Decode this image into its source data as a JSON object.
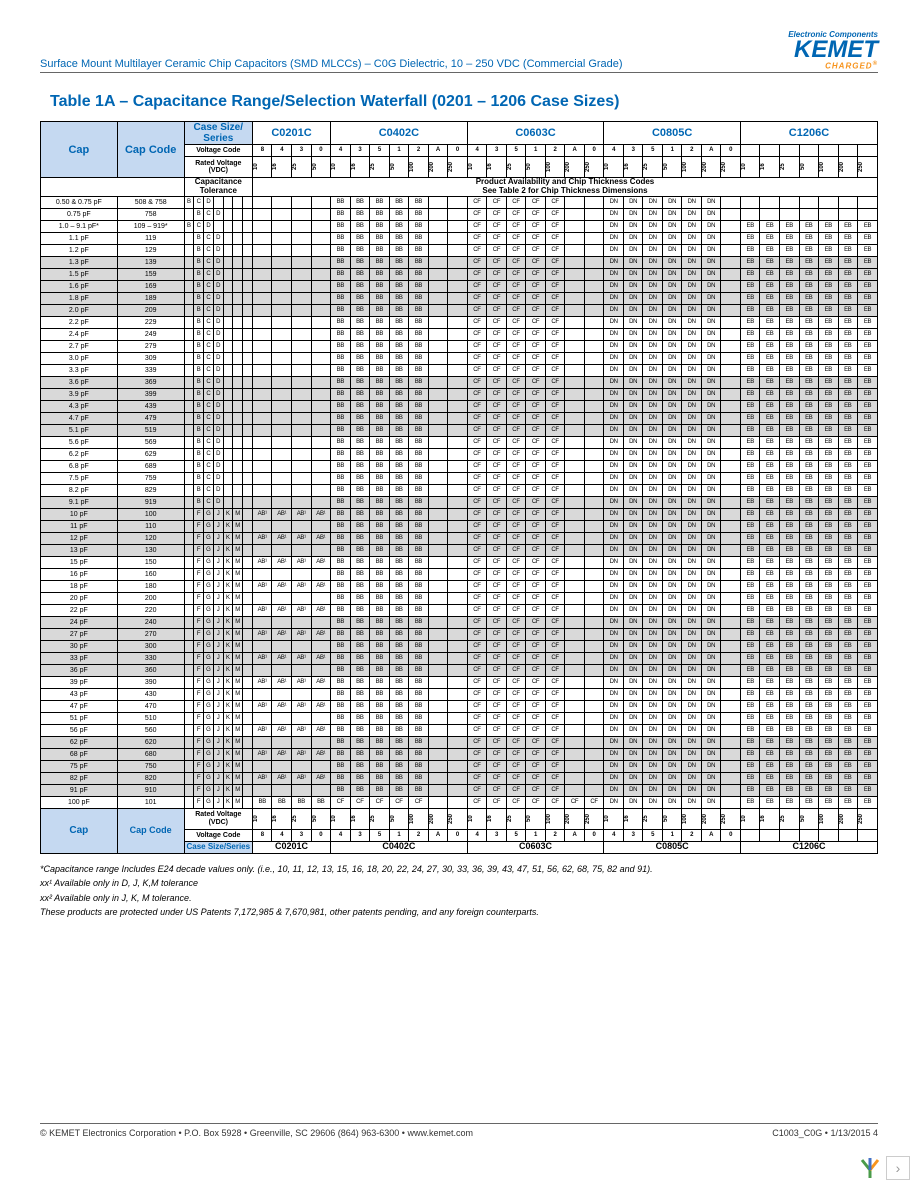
{
  "header": {
    "subtitle": "Surface Mount Multilayer Ceramic Chip Capacitors (SMD MLCCs) – C0G Dielectric, 10 – 250 VDC (Commercial Grade)",
    "logo_top": "Electronic Components",
    "logo_main": "KEMET",
    "logo_sub": "CHARGED"
  },
  "table": {
    "title": "Table 1A – Capacitance Range/Selection Waterfall (0201 – 1206 Case Sizes)",
    "cap_header": "Cap",
    "code_header": "Cap Code",
    "case_series": "Case Size/\nSeries",
    "voltage_code": "Voltage Code",
    "rated_voltage": "Rated Voltage (VDC)",
    "cap_tolerance": "Capacitance\nTolerance",
    "prod_avail": "Product Availability and Chip Thickness Codes\nSee Table 2 for Chip Thickness Dimensions",
    "cases": [
      "C0201C",
      "C0402C",
      "C0603C",
      "C0805C",
      "C1206C"
    ],
    "vcodes_0201": [
      "8",
      "4",
      "3",
      "0",
      "4",
      "3",
      "5",
      "1"
    ],
    "vcodes_0402": [
      "2",
      "A",
      "0",
      "4",
      "3",
      "5",
      "1"
    ],
    "vcodes_0603": [
      "2",
      "A",
      "0",
      "4",
      "3",
      "5",
      "1"
    ],
    "vcodes_0805": [
      "2",
      "A",
      "0",
      "4",
      "3",
      "5",
      "1",
      "2",
      "A"
    ],
    "vcodes_1206": [
      "",
      "",
      "",
      "",
      "",
      "",
      ""
    ],
    "voltages_a": [
      "10",
      "16",
      "25",
      "50"
    ],
    "voltages_b": [
      "10",
      "16",
      "25",
      "50",
      "100",
      "200",
      "250"
    ],
    "rows": [
      {
        "cap": "0.50 & 0.75 pF",
        "code": "508 & 758",
        "tol": [
          "B",
          "C",
          "D",
          "",
          "",
          "",
          ""
        ],
        "shade": false
      },
      {
        "cap": "0.75 pF",
        "code": "758",
        "tol": [
          "",
          "B",
          "C",
          "D",
          "",
          "",
          ""
        ],
        "shade": false
      },
      {
        "cap": "1.0 – 9.1 pF*",
        "code": "109 – 919*",
        "tol": [
          "B",
          "C",
          "D",
          "",
          "",
          "",
          ""
        ],
        "shade": false
      },
      {
        "cap": "1.1 pF",
        "code": "119",
        "tol": [
          "",
          "B",
          "C",
          "D",
          "",
          "",
          ""
        ],
        "shade": false
      },
      {
        "cap": "1.2 pF",
        "code": "129",
        "tol": [
          "",
          "B",
          "C",
          "D",
          "",
          "",
          ""
        ],
        "shade": false
      },
      {
        "cap": "1.3 pF",
        "code": "139",
        "tol": [
          "",
          "B",
          "C",
          "D",
          "",
          "",
          ""
        ],
        "shade": true
      },
      {
        "cap": "1.5 pF",
        "code": "159",
        "tol": [
          "",
          "B",
          "C",
          "D",
          "",
          "",
          ""
        ],
        "shade": true
      },
      {
        "cap": "1.6 pF",
        "code": "169",
        "tol": [
          "",
          "B",
          "C",
          "D",
          "",
          "",
          ""
        ],
        "shade": true
      },
      {
        "cap": "1.8 pF",
        "code": "189",
        "tol": [
          "",
          "B",
          "C",
          "D",
          "",
          "",
          ""
        ],
        "shade": true
      },
      {
        "cap": "2.0 pF",
        "code": "209",
        "tol": [
          "",
          "B",
          "C",
          "D",
          "",
          "",
          ""
        ],
        "shade": true
      },
      {
        "cap": "2.2 pF",
        "code": "229",
        "tol": [
          "",
          "B",
          "C",
          "D",
          "",
          "",
          ""
        ],
        "shade": false
      },
      {
        "cap": "2.4 pF",
        "code": "249",
        "tol": [
          "",
          "B",
          "C",
          "D",
          "",
          "",
          ""
        ],
        "shade": false
      },
      {
        "cap": "2.7 pF",
        "code": "279",
        "tol": [
          "",
          "B",
          "C",
          "D",
          "",
          "",
          ""
        ],
        "shade": false
      },
      {
        "cap": "3.0 pF",
        "code": "309",
        "tol": [
          "",
          "B",
          "C",
          "D",
          "",
          "",
          ""
        ],
        "shade": false
      },
      {
        "cap": "3.3 pF",
        "code": "339",
        "tol": [
          "",
          "B",
          "C",
          "D",
          "",
          "",
          ""
        ],
        "shade": false
      },
      {
        "cap": "3.6 pF",
        "code": "369",
        "tol": [
          "",
          "B",
          "C",
          "D",
          "",
          "",
          ""
        ],
        "shade": true
      },
      {
        "cap": "3.9 pF",
        "code": "399",
        "tol": [
          "",
          "B",
          "C",
          "D",
          "",
          "",
          ""
        ],
        "shade": true
      },
      {
        "cap": "4.3 pF",
        "code": "439",
        "tol": [
          "",
          "B",
          "C",
          "D",
          "",
          "",
          ""
        ],
        "shade": true
      },
      {
        "cap": "4.7 pF",
        "code": "479",
        "tol": [
          "",
          "B",
          "C",
          "D",
          "",
          "",
          ""
        ],
        "shade": true
      },
      {
        "cap": "5.1 pF",
        "code": "519",
        "tol": [
          "",
          "B",
          "C",
          "D",
          "",
          "",
          ""
        ],
        "shade": true
      },
      {
        "cap": "5.6 pF",
        "code": "569",
        "tol": [
          "",
          "B",
          "C",
          "D",
          "",
          "",
          ""
        ],
        "shade": false
      },
      {
        "cap": "6.2 pF",
        "code": "629",
        "tol": [
          "",
          "B",
          "C",
          "D",
          "",
          "",
          ""
        ],
        "shade": false
      },
      {
        "cap": "6.8 pF",
        "code": "689",
        "tol": [
          "",
          "B",
          "C",
          "D",
          "",
          "",
          ""
        ],
        "shade": false
      },
      {
        "cap": "7.5 pF",
        "code": "759",
        "tol": [
          "",
          "B",
          "C",
          "D",
          "",
          "",
          ""
        ],
        "shade": false
      },
      {
        "cap": "8.2 pF",
        "code": "829",
        "tol": [
          "",
          "B",
          "C",
          "D",
          "",
          "",
          ""
        ],
        "shade": false
      },
      {
        "cap": "9.1 pF",
        "code": "919",
        "tol": [
          "",
          "B",
          "C",
          "D",
          "",
          "",
          ""
        ],
        "shade": true
      },
      {
        "cap": "10 pF",
        "code": "100",
        "tol": [
          "",
          "F",
          "G",
          "J",
          "K",
          "M",
          ""
        ],
        "shade": true,
        "ab": true
      },
      {
        "cap": "11 pF",
        "code": "110",
        "tol": [
          "",
          "F",
          "G",
          "J",
          "K",
          "M",
          ""
        ],
        "shade": true
      },
      {
        "cap": "12 pF",
        "code": "120",
        "tol": [
          "",
          "F",
          "G",
          "J",
          "K",
          "M",
          ""
        ],
        "shade": true,
        "ab": true
      },
      {
        "cap": "13 pF",
        "code": "130",
        "tol": [
          "",
          "F",
          "G",
          "J",
          "K",
          "M",
          ""
        ],
        "shade": true
      },
      {
        "cap": "15 pF",
        "code": "150",
        "tol": [
          "",
          "F",
          "G",
          "J",
          "K",
          "M",
          ""
        ],
        "shade": false,
        "ab": true
      },
      {
        "cap": "16 pF",
        "code": "160",
        "tol": [
          "",
          "F",
          "G",
          "J",
          "K",
          "M",
          ""
        ],
        "shade": false
      },
      {
        "cap": "18 pF",
        "code": "180",
        "tol": [
          "",
          "F",
          "G",
          "J",
          "K",
          "M",
          ""
        ],
        "shade": false,
        "ab": true
      },
      {
        "cap": "20 pF",
        "code": "200",
        "tol": [
          "",
          "F",
          "G",
          "J",
          "K",
          "M",
          ""
        ],
        "shade": false
      },
      {
        "cap": "22 pF",
        "code": "220",
        "tol": [
          "",
          "F",
          "G",
          "J",
          "K",
          "M",
          ""
        ],
        "shade": false,
        "ab": true
      },
      {
        "cap": "24 pF",
        "code": "240",
        "tol": [
          "",
          "F",
          "G",
          "J",
          "K",
          "M",
          ""
        ],
        "shade": true
      },
      {
        "cap": "27 pF",
        "code": "270",
        "tol": [
          "",
          "F",
          "G",
          "J",
          "K",
          "M",
          ""
        ],
        "shade": true,
        "ab": true
      },
      {
        "cap": "30 pF",
        "code": "300",
        "tol": [
          "",
          "F",
          "G",
          "J",
          "K",
          "M",
          ""
        ],
        "shade": true
      },
      {
        "cap": "33 pF",
        "code": "330",
        "tol": [
          "",
          "F",
          "G",
          "J",
          "K",
          "M",
          ""
        ],
        "shade": true,
        "ab": true
      },
      {
        "cap": "36 pF",
        "code": "360",
        "tol": [
          "",
          "F",
          "G",
          "J",
          "K",
          "M",
          ""
        ],
        "shade": true
      },
      {
        "cap": "39 pF",
        "code": "390",
        "tol": [
          "",
          "F",
          "G",
          "J",
          "K",
          "M",
          ""
        ],
        "shade": false,
        "ab": true
      },
      {
        "cap": "43 pF",
        "code": "430",
        "tol": [
          "",
          "F",
          "G",
          "J",
          "K",
          "M",
          ""
        ],
        "shade": false
      },
      {
        "cap": "47 pF",
        "code": "470",
        "tol": [
          "",
          "F",
          "G",
          "J",
          "K",
          "M",
          ""
        ],
        "shade": false,
        "ab": true
      },
      {
        "cap": "51 pF",
        "code": "510",
        "tol": [
          "",
          "F",
          "G",
          "J",
          "K",
          "M",
          ""
        ],
        "shade": false
      },
      {
        "cap": "56 pF",
        "code": "560",
        "tol": [
          "",
          "F",
          "G",
          "J",
          "K",
          "M",
          ""
        ],
        "shade": false,
        "ab": true
      },
      {
        "cap": "62 pF",
        "code": "620",
        "tol": [
          "",
          "F",
          "G",
          "J",
          "K",
          "M",
          ""
        ],
        "shade": true
      },
      {
        "cap": "68 pF",
        "code": "680",
        "tol": [
          "",
          "F",
          "G",
          "J",
          "K",
          "M",
          ""
        ],
        "shade": true,
        "ab": true
      },
      {
        "cap": "75 pF",
        "code": "750",
        "tol": [
          "",
          "F",
          "G",
          "J",
          "K",
          "M",
          ""
        ],
        "shade": true
      },
      {
        "cap": "82 pF",
        "code": "820",
        "tol": [
          "",
          "F",
          "G",
          "J",
          "K",
          "M",
          ""
        ],
        "shade": true,
        "ab": true
      },
      {
        "cap": "91 pF",
        "code": "910",
        "tol": [
          "",
          "F",
          "G",
          "J",
          "K",
          "M",
          ""
        ],
        "shade": true
      },
      {
        "cap": "100 pF",
        "code": "101",
        "tol": [
          "",
          "F",
          "G",
          "J",
          "K",
          "M",
          ""
        ],
        "shade": false,
        "ab": true,
        "last": true
      }
    ]
  },
  "notes": {
    "n1": "*Capacitance range Includes E24 decade values only. (i.e., 10, 11, 12, 13, 15, 16, 18, 20, 22, 24, 27, 30, 33, 36, 39, 43, 47, 51, 56, 62, 68, 75, 82 and 91).",
    "n2": "xx¹ Available only in D, J, K,M tolerance",
    "n3": "xx² Available only in J, K, M tolerance.",
    "n4": "These products are protected under US Patents 7,172,985 & 7,670,981, other patents pending, and any foreign counterparts."
  },
  "footer": {
    "left": "© KEMET Electronics Corporation • P.O. Box 5928 • Greenville, SC 29606 (864) 963-6300 • www.kemet.com",
    "right": "C1003_C0G • 1/13/2015     4"
  }
}
